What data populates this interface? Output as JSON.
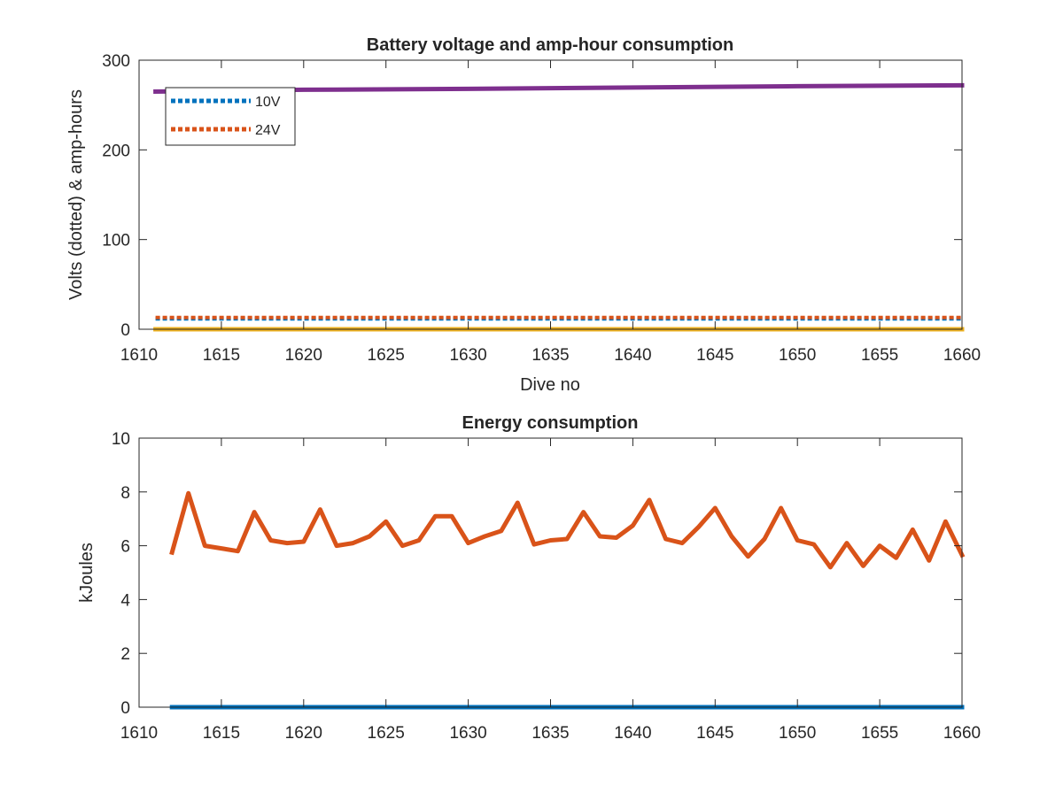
{
  "chart_data": [
    {
      "type": "line",
      "title": "Battery voltage and amp-hour consumption",
      "xlabel": "Dive no",
      "ylabel": "Volts (dotted) & amp-hours",
      "xlim": [
        1610,
        1660
      ],
      "ylim": [
        0,
        300
      ],
      "xticks": [
        1610,
        1615,
        1620,
        1625,
        1630,
        1635,
        1640,
        1645,
        1650,
        1655,
        1660
      ],
      "yticks": [
        0,
        100,
        200,
        300
      ],
      "grid": false,
      "legend_position": "top-left",
      "series": [
        {
          "name": "10V",
          "style": "dotted",
          "color": "#0072BD",
          "x": [
            1611,
            1660
          ],
          "y": [
            11.5,
            11.5
          ]
        },
        {
          "name": "24V",
          "style": "dotted",
          "color": "#D95319",
          "x": [
            1611,
            1660
          ],
          "y": [
            13,
            13
          ]
        },
        {
          "name": "",
          "style": "solid",
          "color": "#EDB120",
          "x": [
            1611,
            1660
          ],
          "y": [
            0,
            0
          ]
        },
        {
          "name": "",
          "style": "solid",
          "color": "#7E2F8E",
          "x": [
            1611,
            1620,
            1630,
            1640,
            1650,
            1660
          ],
          "y": [
            265,
            267,
            268,
            269.5,
            271,
            272
          ]
        }
      ]
    },
    {
      "type": "line",
      "title": "Energy consumption",
      "xlabel": "",
      "ylabel": "kJoules",
      "xlim": [
        1610,
        1660
      ],
      "ylim": [
        0,
        10
      ],
      "xticks": [
        1610,
        1615,
        1620,
        1625,
        1630,
        1635,
        1640,
        1645,
        1650,
        1655,
        1660
      ],
      "yticks": [
        0,
        2,
        4,
        6,
        8,
        10
      ],
      "grid": false,
      "series": [
        {
          "name": "",
          "style": "solid",
          "color": "#0072BD",
          "x": [
            1612,
            1660
          ],
          "y": [
            0,
            0
          ]
        },
        {
          "name": "",
          "style": "solid",
          "color": "#D95319",
          "x": [
            1612,
            1613,
            1614,
            1615,
            1616,
            1617,
            1618,
            1619,
            1620,
            1621,
            1622,
            1623,
            1624,
            1625,
            1626,
            1627,
            1628,
            1629,
            1630,
            1631,
            1632,
            1633,
            1634,
            1635,
            1636,
            1637,
            1638,
            1639,
            1640,
            1641,
            1642,
            1643,
            1644,
            1645,
            1646,
            1647,
            1648,
            1649,
            1650,
            1651,
            1652,
            1653,
            1654,
            1655,
            1656,
            1657,
            1658,
            1659,
            1660
          ],
          "y": [
            5.75,
            7.95,
            6.0,
            5.9,
            5.8,
            7.25,
            6.2,
            6.1,
            6.15,
            7.35,
            6.0,
            6.1,
            6.35,
            6.9,
            6.0,
            6.2,
            7.1,
            7.1,
            6.1,
            6.35,
            6.55,
            7.6,
            6.05,
            6.2,
            6.25,
            7.25,
            6.35,
            6.3,
            6.75,
            7.7,
            6.25,
            6.1,
            6.7,
            7.4,
            6.35,
            5.6,
            6.25,
            7.4,
            6.2,
            6.05,
            5.2,
            6.1,
            5.25,
            6.0,
            5.55,
            6.6,
            5.45,
            6.9,
            5.65
          ]
        }
      ]
    }
  ]
}
